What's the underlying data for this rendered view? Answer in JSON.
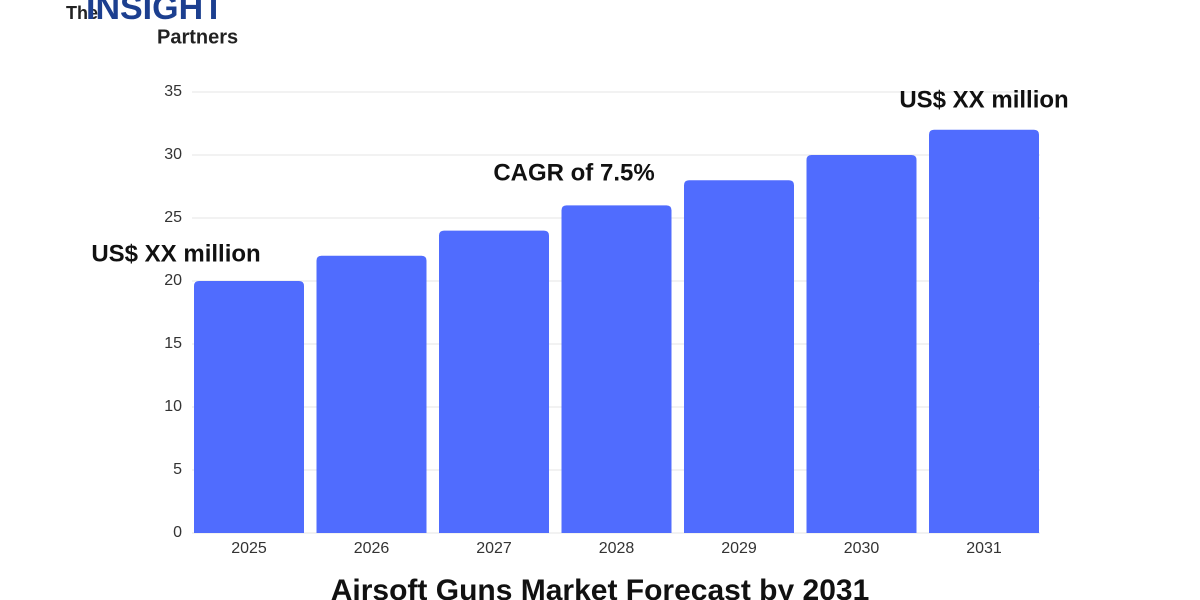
{
  "logo": {
    "prefix": "The",
    "name": "INSIGHT",
    "suffix": "Partners"
  },
  "chart_data": {
    "type": "bar",
    "title": "Airsoft Guns Market Forecast by 2031",
    "categories": [
      "2025",
      "2026",
      "2027",
      "2028",
      "2029",
      "2030",
      "2031"
    ],
    "values": [
      20,
      22,
      24,
      26,
      28,
      30,
      32
    ],
    "color": "#506cfe",
    "ylim": [
      0,
      35
    ],
    "yticks": [
      0,
      5,
      10,
      15,
      20,
      25,
      30,
      35
    ],
    "grid": true,
    "annotations": [
      "US$ XX million",
      "CAGR of 7.5%",
      "US$ XX million"
    ]
  }
}
